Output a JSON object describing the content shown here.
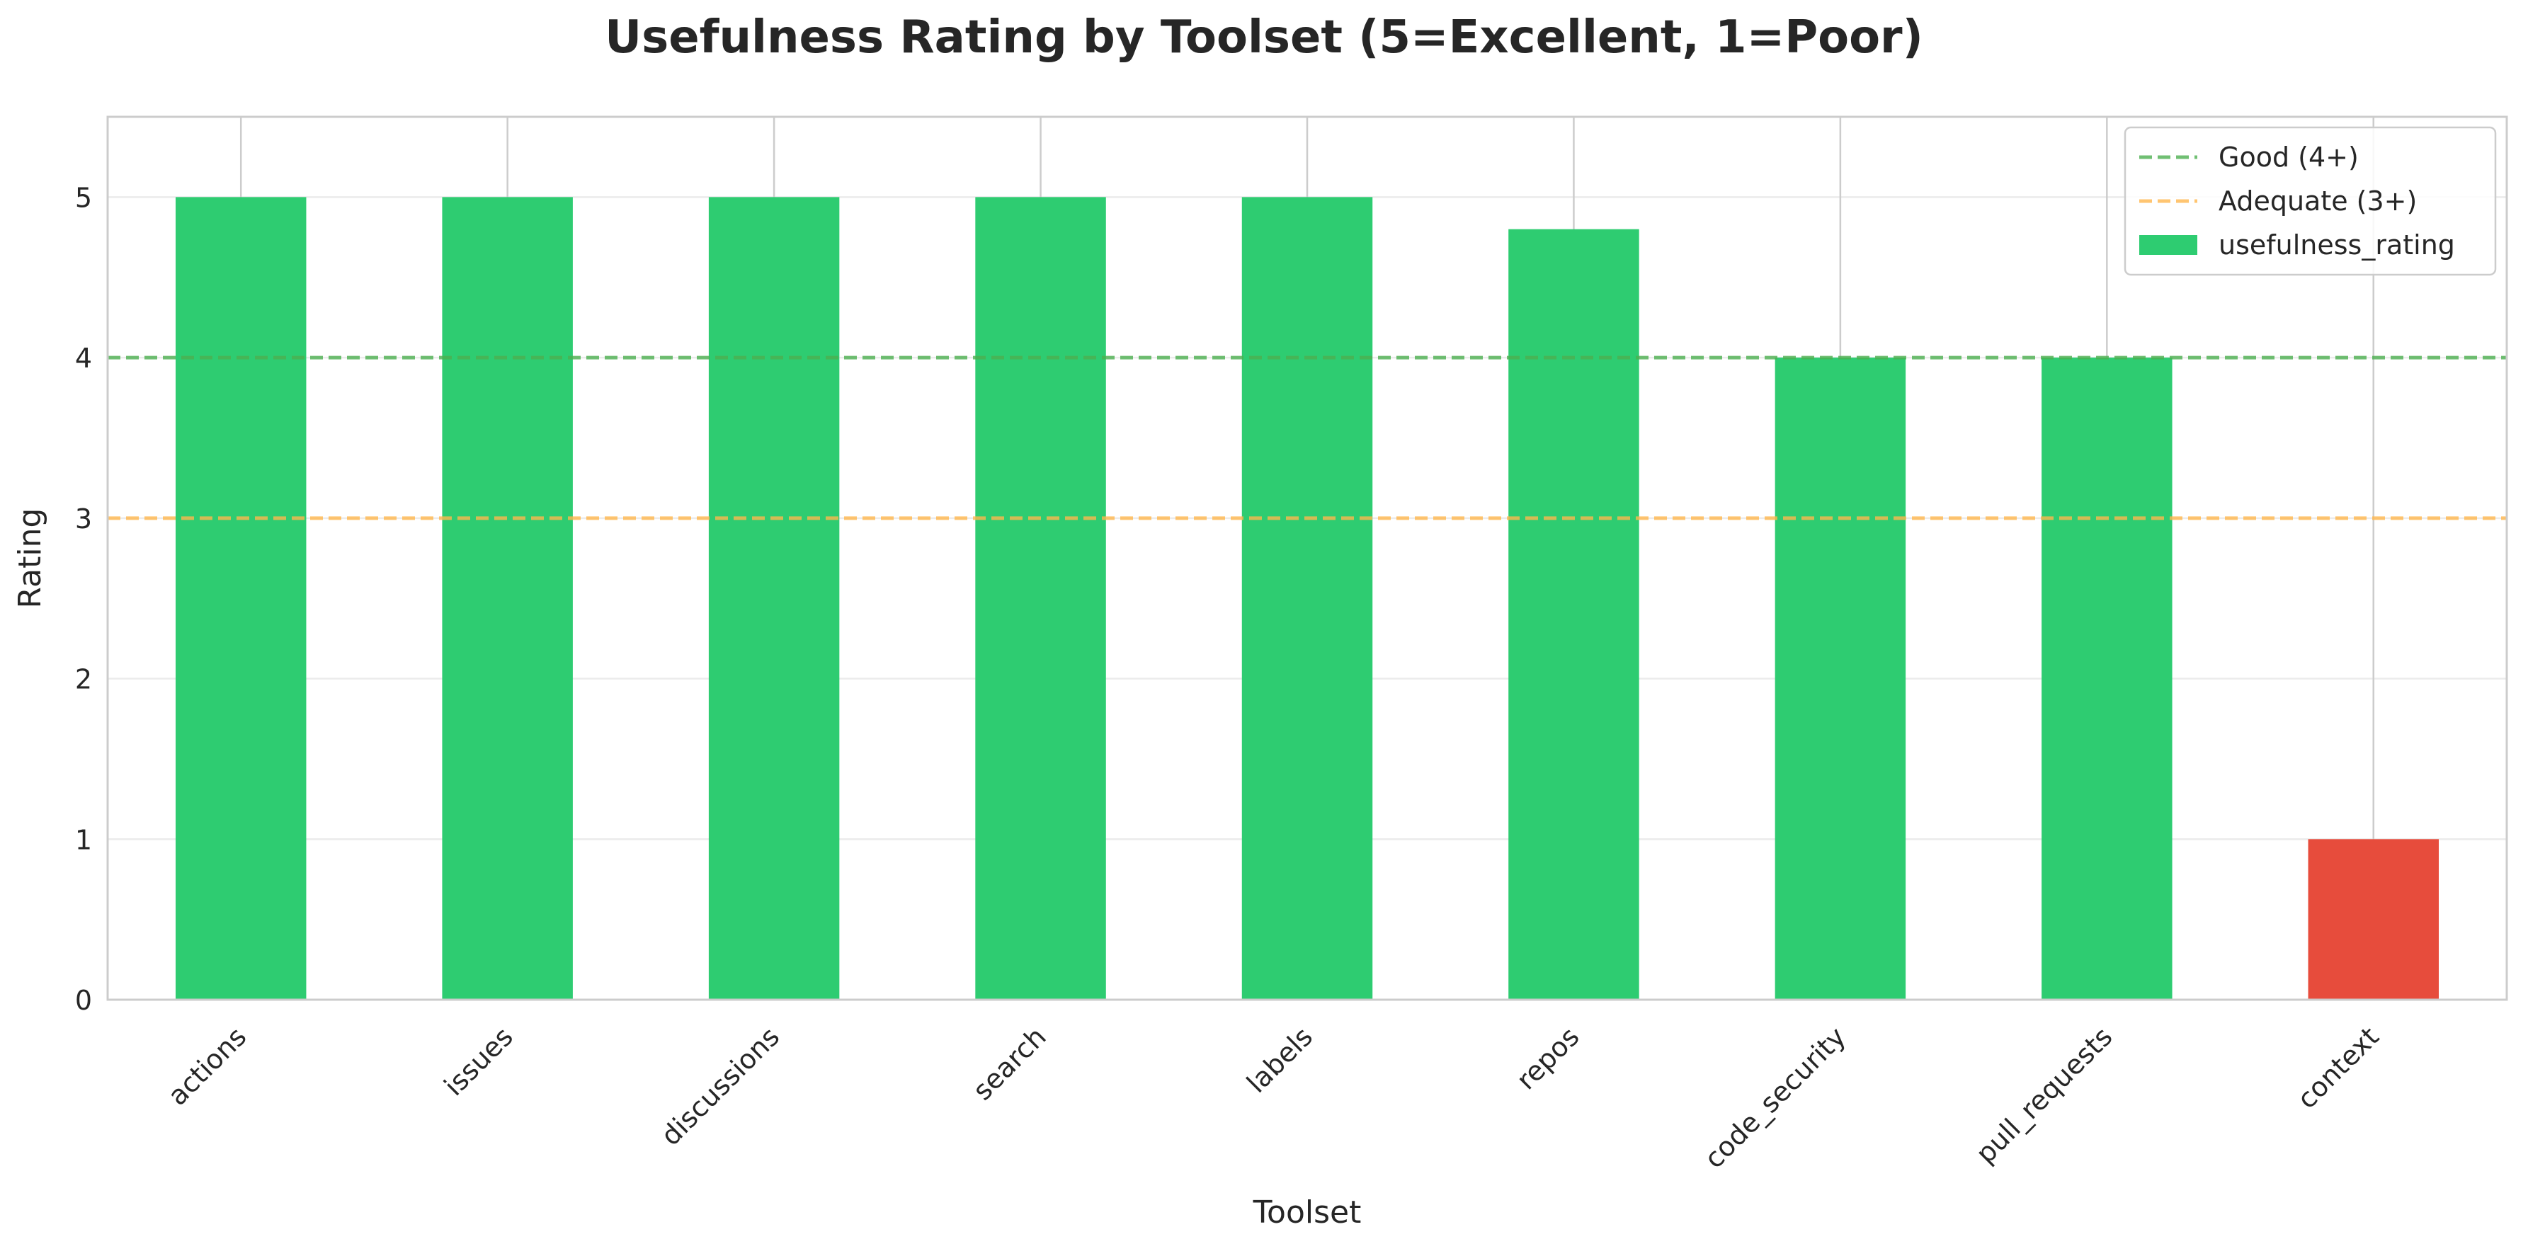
{
  "chart_data": {
    "type": "bar",
    "title": "Usefulness Rating by Toolset (5=Excellent, 1=Poor)",
    "xlabel": "Toolset",
    "ylabel": "Rating",
    "categories": [
      "actions",
      "issues",
      "discussions",
      "search",
      "labels",
      "repos",
      "code_security",
      "pull_requests",
      "context"
    ],
    "series": [
      {
        "name": "usefulness_rating",
        "values": [
          5.0,
          5.0,
          5.0,
          5.0,
          5.0,
          4.8,
          4.0,
          4.0,
          1.0
        ]
      }
    ],
    "ylim": [
      0,
      5.5
    ],
    "yticks": [
      "0",
      "1",
      "2",
      "3",
      "4",
      "5"
    ],
    "grid": true,
    "legend_position": "top-right",
    "reference_lines": [
      {
        "label": "Good (4+)",
        "value": 4,
        "color": "#4caf50",
        "style": "dashed"
      },
      {
        "label": "Adequate (3+)",
        "value": 3,
        "color": "#ffb74d",
        "style": "dashed"
      }
    ],
    "colors": {
      "high": "#2ecc71",
      "low": "#e74c3c",
      "legend_swatch": "#2ecc71"
    },
    "low_threshold": 3
  }
}
